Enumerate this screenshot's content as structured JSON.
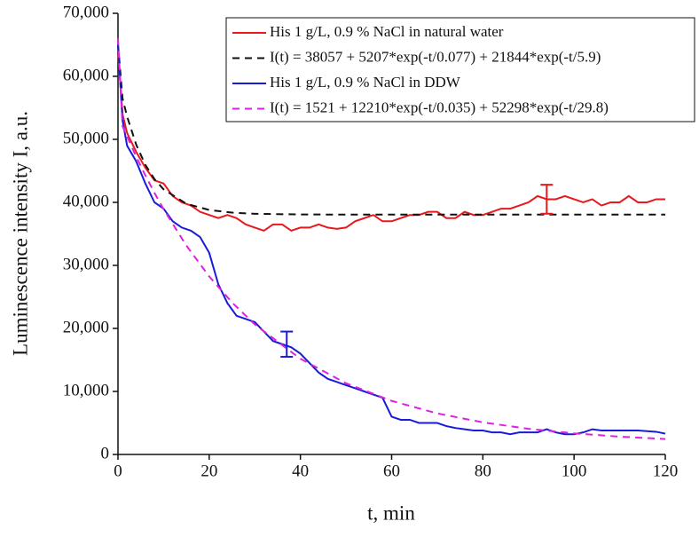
{
  "chart_data": {
    "type": "line",
    "xlabel": "t, min",
    "ylabel": "Luminescence intensity I, a.u.",
    "xlim": [
      0,
      120
    ],
    "ylim": [
      0,
      70000
    ],
    "xticks": [
      0,
      20,
      40,
      60,
      80,
      100,
      120
    ],
    "yticks": [
      0,
      {
        "value": 10000,
        "label": "10,000"
      },
      {
        "value": 20000,
        "label": "20,000"
      },
      {
        "value": 30000,
        "label": "30,000"
      },
      {
        "value": 40000,
        "label": "40,000"
      },
      {
        "value": 50000,
        "label": "50,000"
      },
      {
        "value": 60000,
        "label": "60,000"
      },
      {
        "value": 70000,
        "label": "70,000"
      }
    ],
    "legend": "upper right",
    "series": [
      {
        "name": "His 1 g/L, 0.9 % NaCl in natural water",
        "color": "#e8191c",
        "dash": false,
        "x": [
          0,
          1,
          2,
          4,
          6,
          8,
          10,
          12,
          14,
          16,
          18,
          20,
          22,
          24,
          26,
          28,
          30,
          32,
          34,
          36,
          38,
          40,
          42,
          44,
          46,
          48,
          50,
          52,
          54,
          56,
          58,
          60,
          62,
          64,
          66,
          68,
          70,
          72,
          74,
          76,
          78,
          80,
          82,
          84,
          86,
          88,
          90,
          92,
          94,
          96,
          98,
          100,
          102,
          104,
          106,
          108,
          110,
          112,
          114,
          116,
          118,
          120
        ],
        "values": [
          64000,
          54000,
          51000,
          48000,
          45500,
          43500,
          43000,
          41000,
          40000,
          39500,
          38500,
          38000,
          37500,
          38000,
          37500,
          36500,
          36000,
          35500,
          36500,
          36500,
          35500,
          36000,
          36000,
          36500,
          36000,
          35800,
          36000,
          37000,
          37500,
          38000,
          37000,
          37000,
          37500,
          38000,
          38000,
          38500,
          38500,
          37500,
          37500,
          38500,
          38000,
          38000,
          38500,
          39000,
          39000,
          39500,
          40000,
          41000,
          40500,
          40500,
          41000,
          40500,
          40000,
          40500,
          39500,
          40000,
          40000,
          41000,
          40000,
          40000,
          40500,
          40500
        ]
      },
      {
        "name": "I(t) = 38057 + 5207*exp(-t/0.077) + 21844*exp(-t/5.9)",
        "color": "#111111",
        "dash": true,
        "x": [
          0,
          1,
          2,
          4,
          6,
          8,
          10,
          15,
          20,
          25,
          30,
          40,
          50,
          60,
          70,
          80,
          90,
          100,
          110,
          120
        ],
        "values": [
          65108,
          56496,
          53621,
          49147,
          45958,
          43686,
          42068,
          39776,
          38794,
          38373,
          38192,
          38082,
          38062,
          38058,
          38057,
          38057,
          38057,
          38057,
          38057,
          38057
        ]
      },
      {
        "name": "His 1 g/L, 0.9 % NaCl in DDW",
        "color": "#1a1adb",
        "dash": false,
        "x": [
          0,
          1,
          2,
          4,
          6,
          8,
          10,
          12,
          14,
          16,
          18,
          20,
          22,
          24,
          26,
          28,
          30,
          32,
          34,
          36,
          38,
          40,
          42,
          44,
          46,
          48,
          50,
          52,
          54,
          56,
          58,
          60,
          62,
          64,
          66,
          68,
          70,
          72,
          74,
          76,
          78,
          80,
          82,
          84,
          86,
          88,
          90,
          92,
          94,
          96,
          98,
          100,
          102,
          104,
          106,
          108,
          110,
          112,
          114,
          116,
          118,
          120
        ],
        "values": [
          65000,
          53000,
          49000,
          46500,
          43000,
          40000,
          39000,
          37000,
          36000,
          35500,
          34500,
          32000,
          27000,
          24000,
          22000,
          21500,
          21000,
          19500,
          18000,
          17500,
          17000,
          16000,
          14500,
          13000,
          12000,
          11500,
          11000,
          10500,
          10000,
          9500,
          9000,
          6000,
          5500,
          5500,
          5000,
          5000,
          5000,
          4500,
          4200,
          4000,
          3800,
          3800,
          3500,
          3500,
          3200,
          3500,
          3500,
          3500,
          4000,
          3500,
          3200,
          3200,
          3500,
          4000,
          3800,
          3800,
          3800,
          3800,
          3800,
          3700,
          3600,
          3300
        ]
      },
      {
        "name": "I(t) = 1521 + 12210*exp(-t/0.035) + 52298*exp(-t/29.8)",
        "color": "#e020e0",
        "dash": true,
        "x": [
          0,
          1,
          2,
          4,
          6,
          8,
          10,
          15,
          20,
          25,
          30,
          40,
          50,
          60,
          70,
          80,
          90,
          100,
          110,
          120
        ],
        "values": [
          66029,
          52093,
          50457,
          47250,
          44281,
          41508,
          38909,
          33135,
          28251,
          24124,
          20631,
          15181,
          11290,
          8503,
          6515,
          5093,
          4073,
          3346,
          2825,
          2454
        ]
      }
    ],
    "error_bars": [
      {
        "x": 94,
        "value": 40500,
        "error": 2300,
        "color": "#e8191c"
      },
      {
        "x": 37,
        "value": 17500,
        "error": 2000,
        "color": "#1a1adb"
      }
    ]
  }
}
